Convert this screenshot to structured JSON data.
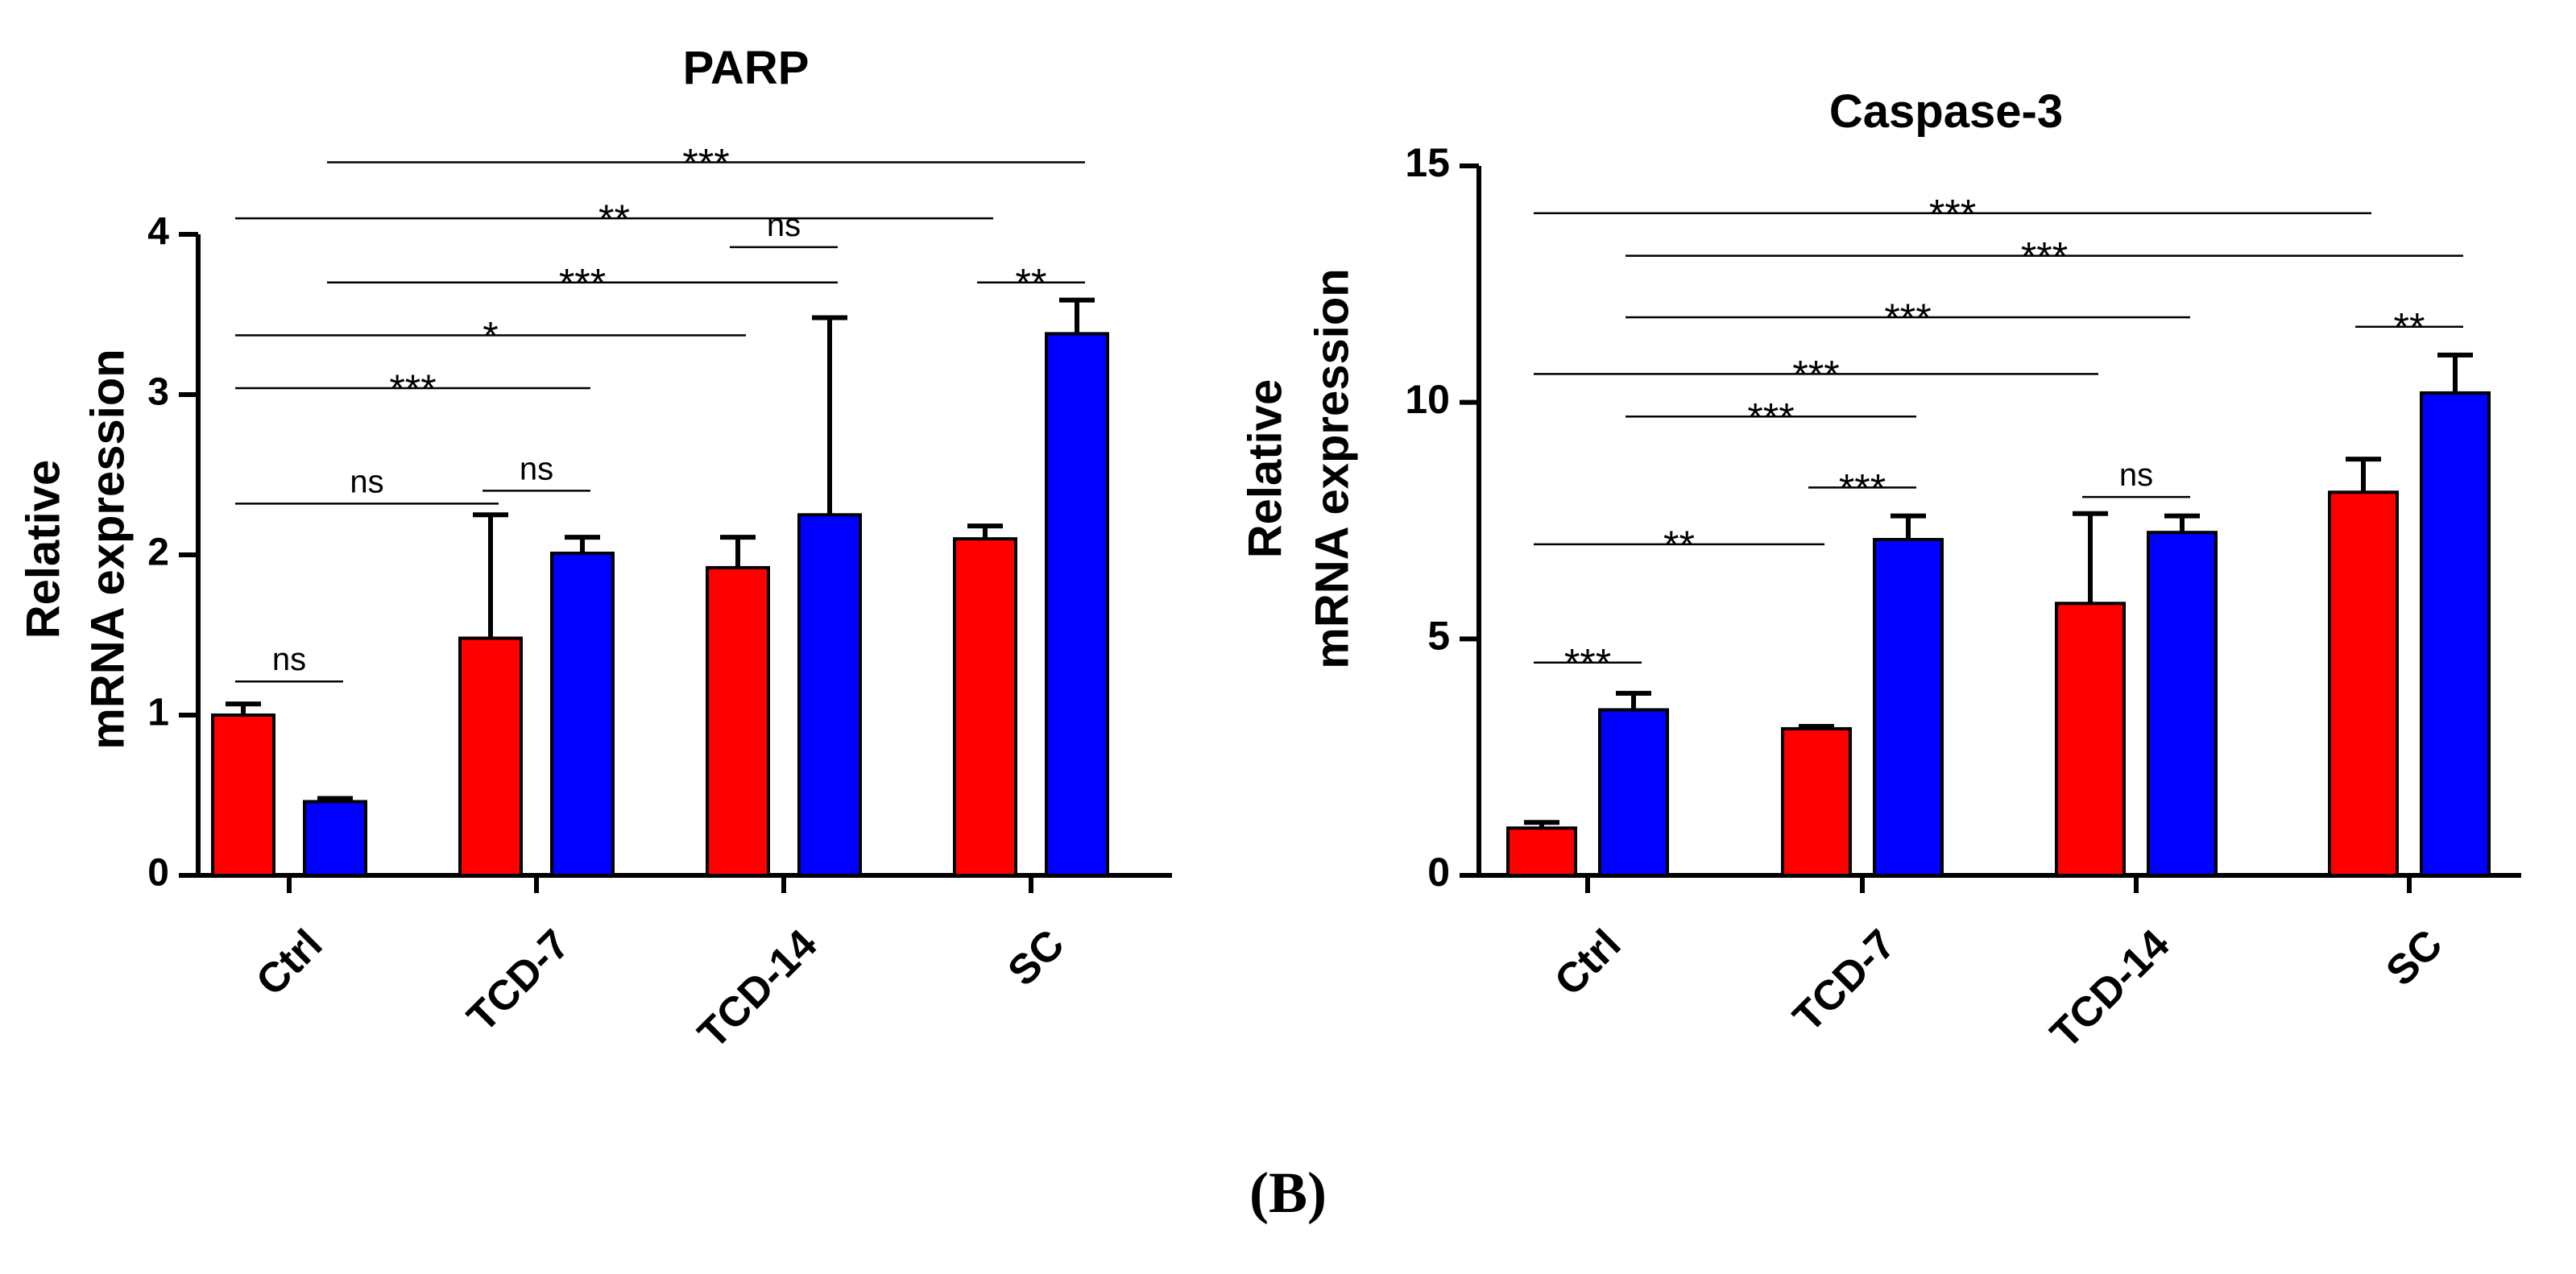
{
  "figure": {
    "panel_label": "(B)"
  },
  "chart_data": [
    {
      "type": "bar",
      "title": "PARP",
      "ylabel": [
        "Relative",
        "mRNA expression"
      ],
      "xlabel": "",
      "ylim": [
        0,
        4
      ],
      "yticks": [
        0,
        1,
        2,
        3,
        4
      ],
      "grid": false,
      "legend": false,
      "categories": [
        "Ctrl",
        "TCD-7",
        "TCD-14",
        "SC"
      ],
      "series": [
        {
          "color": "#ff0000",
          "values": [
            1.0,
            1.48,
            1.92,
            2.1
          ],
          "errors": [
            0.07,
            0.77,
            0.19,
            0.08
          ]
        },
        {
          "color": "#0000ff",
          "values": [
            0.46,
            2.01,
            2.25,
            3.38
          ],
          "errors": [
            0.02,
            0.1,
            1.23,
            0.21
          ]
        }
      ],
      "annotations": [
        {
          "label": "***",
          "from": [
            0,
            1
          ],
          "to": [
            3,
            1
          ],
          "y": 4.45
        },
        {
          "label": "**",
          "from": [
            0,
            0
          ],
          "to": [
            3,
            0
          ],
          "y": 4.1
        },
        {
          "label": "ns",
          "from": [
            2,
            0
          ],
          "to": [
            2,
            1
          ],
          "y": 3.92
        },
        {
          "label": "***",
          "from": [
            0,
            1
          ],
          "to": [
            2,
            1
          ],
          "y": 3.7
        },
        {
          "label": "**",
          "from": [
            3,
            0
          ],
          "to": [
            3,
            1
          ],
          "y": 3.7
        },
        {
          "label": "*",
          "from": [
            0,
            0
          ],
          "to": [
            2,
            0
          ],
          "y": 3.37
        },
        {
          "label": "***",
          "from": [
            0,
            0
          ],
          "to": [
            1,
            1
          ],
          "y": 3.04
        },
        {
          "label": "ns",
          "from": [
            0,
            0
          ],
          "to": [
            1,
            0
          ],
          "y": 2.32
        },
        {
          "label": "ns",
          "from": [
            1,
            0
          ],
          "to": [
            1,
            1
          ],
          "y": 2.4
        },
        {
          "label": "ns",
          "from": [
            0,
            0
          ],
          "to": [
            0,
            1
          ],
          "y": 1.21
        }
      ]
    },
    {
      "type": "bar",
      "title": "Caspase-3",
      "ylabel": [
        "Relative",
        "mRNA expression"
      ],
      "xlabel": "",
      "ylim": [
        0,
        15
      ],
      "yticks": [
        0,
        5,
        10,
        15
      ],
      "grid": false,
      "legend": false,
      "categories": [
        "Ctrl",
        "TCD-7",
        "TCD-14",
        "SC"
      ],
      "series": [
        {
          "color": "#ff0000",
          "values": [
            1.0,
            3.1,
            5.75,
            8.1
          ],
          "errors": [
            0.12,
            0.05,
            1.9,
            0.7
          ]
        },
        {
          "color": "#0000ff",
          "values": [
            3.5,
            7.1,
            7.25,
            10.2
          ],
          "errors": [
            0.35,
            0.5,
            0.35,
            0.8
          ]
        }
      ],
      "annotations": [
        {
          "label": "***",
          "from": [
            0,
            0
          ],
          "to": [
            3,
            0
          ],
          "y": 14.0
        },
        {
          "label": "***",
          "from": [
            0,
            1
          ],
          "to": [
            3,
            1
          ],
          "y": 13.1
        },
        {
          "label": "***",
          "from": [
            0,
            1
          ],
          "to": [
            2,
            1
          ],
          "y": 11.8
        },
        {
          "label": "***",
          "from": [
            0,
            0
          ],
          "to": [
            2,
            0
          ],
          "y": 10.6
        },
        {
          "label": "***",
          "from": [
            0,
            1
          ],
          "to": [
            1,
            1
          ],
          "y": 9.7
        },
        {
          "label": "***",
          "from": [
            1,
            0
          ],
          "to": [
            1,
            1
          ],
          "y": 8.2
        },
        {
          "label": "ns",
          "from": [
            2,
            0
          ],
          "to": [
            2,
            1
          ],
          "y": 8.0
        },
        {
          "label": "**",
          "from": [
            3,
            0
          ],
          "to": [
            3,
            1
          ],
          "y": 11.6
        },
        {
          "label": "**",
          "from": [
            0,
            0
          ],
          "to": [
            1,
            0
          ],
          "y": 7.0
        },
        {
          "label": "***",
          "from": [
            0,
            0
          ],
          "to": [
            0,
            1
          ],
          "y": 4.5
        }
      ]
    }
  ]
}
